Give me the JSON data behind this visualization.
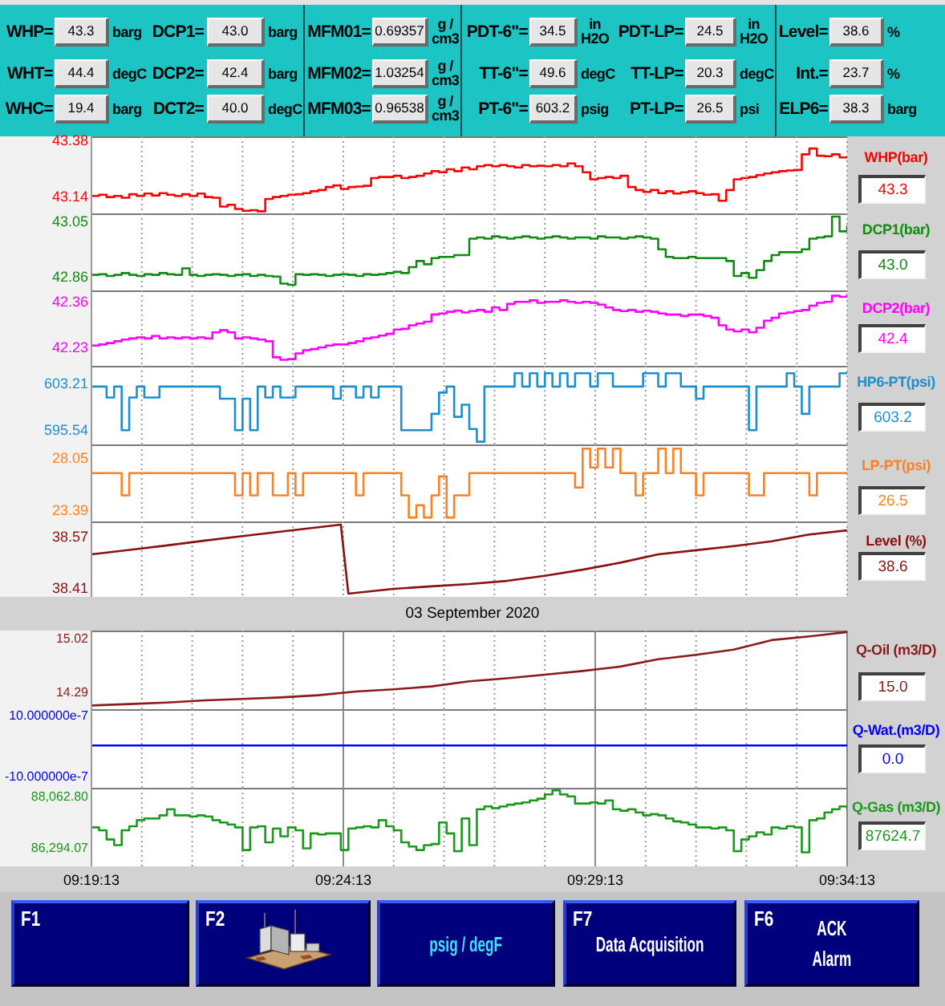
{
  "chart_data": [
    {
      "type": "other",
      "annotations": [
        "WHP=",
        "43.3",
        "barg",
        "DCP1=",
        "43.0",
        "barg",
        "MFM01=",
        "0.69357",
        "g /\ncm3",
        "PDT-6\"=",
        "34.5",
        "in\nH2O",
        "PDT-LP=",
        "24.5",
        "in\nH2O",
        "Level=",
        "38.6",
        "%",
        "WHT=",
        "44.4",
        "degC",
        "DCP2=",
        "42.4",
        "barg",
        "MFM02=",
        "1.03254",
        "g /\ncm3",
        "TT-6\"=",
        "49.6",
        "degC",
        "TT-LP=",
        "20.3",
        "degC",
        "Int.=",
        "23.7",
        "%",
        "WHC=",
        "19.4",
        "barg",
        "DCT2=",
        "40.0",
        "degC",
        "MFM03=",
        "0.96538",
        "g /\ncm3",
        "PT-6\"=",
        "603.2",
        "psig",
        "PT-LP=",
        "26.5",
        "psi",
        "ELP6=",
        "38.3",
        "barg"
      ]
    },
    {
      "type": "step",
      "x": [
        9.32028,
        9.32278,
        9.32528,
        9.32778,
        9.33028,
        9.33278,
        9.33528,
        9.33778,
        9.34028,
        9.34278,
        9.34528,
        9.34778,
        9.35028,
        9.35278,
        9.35528,
        9.35778,
        9.36028,
        9.36278,
        9.36528,
        9.36778,
        9.37028,
        9.37278,
        9.37528,
        9.37778,
        9.38028,
        9.38278,
        9.38528,
        9.38778,
        9.39028,
        9.39278,
        9.39528,
        9.39778,
        9.40028,
        9.40278,
        9.40528,
        9.40778,
        9.41028,
        9.41278,
        9.41528,
        9.41778,
        9.42028,
        9.42278,
        9.42528,
        9.42778,
        9.43028,
        9.43278,
        9.43528,
        9.43778,
        9.44028,
        9.44278,
        9.44528,
        9.44778,
        9.45028,
        9.45278,
        9.45528,
        9.45778,
        9.46028,
        9.46278,
        9.46528,
        9.46778,
        9.47028,
        9.47278,
        9.47528,
        9.47778,
        9.48028,
        9.48278,
        9.48528,
        9.48778,
        9.49028,
        9.49278,
        9.49528,
        9.49778,
        9.50028,
        9.50278,
        9.50528,
        9.50778,
        9.51028,
        9.51278,
        9.51528,
        9.51778,
        9.52028,
        9.52278,
        9.52528,
        9.52778,
        9.53028,
        9.53278,
        9.53528,
        9.53778,
        9.54028,
        9.54278,
        9.54528,
        9.54778,
        9.55028,
        9.55278,
        9.55528,
        9.55778,
        9.56028,
        9.56278,
        9.56528,
        9.56778,
        9.57028
      ],
      "series": [
        {
          "name": "WHP(bar)",
          "color": "#ff0000",
          "values": [
            43.14,
            43.145,
            43.135,
            43.14,
            43.132,
            43.147,
            43.14,
            43.15,
            43.142,
            43.152,
            43.145,
            43.14,
            43.147,
            43.14,
            43.15,
            43.135,
            43.132,
            43.094,
            43.102,
            43.084,
            43.076,
            43.079,
            43.074,
            43.127,
            43.135,
            43.14,
            43.145,
            43.147,
            43.152,
            43.16,
            43.165,
            43.178,
            43.185,
            43.17,
            43.178,
            43.18,
            43.183,
            43.216,
            43.221,
            43.221,
            43.226,
            43.216,
            43.221,
            43.226,
            43.236,
            43.246,
            43.241,
            43.254,
            43.246,
            43.262,
            43.254,
            43.267,
            43.272,
            43.267,
            43.272,
            43.267,
            43.262,
            43.272,
            43.267,
            43.269,
            43.267,
            43.272,
            43.267,
            43.279,
            43.267,
            43.241,
            43.211,
            43.216,
            43.221,
            43.216,
            43.226,
            43.178,
            43.165,
            43.157,
            43.165,
            43.152,
            43.16,
            43.15,
            43.155,
            43.16,
            43.152,
            43.145,
            43.147,
            43.119,
            43.165,
            43.211,
            43.216,
            43.221,
            43.229,
            43.236,
            43.241,
            43.246,
            43.249,
            43.251,
            43.318,
            43.343,
            43.312,
            43.31,
            43.318,
            43.305,
            43.305
          ]
        }
      ],
      "xlim": [
        9.32028,
        9.57028
      ],
      "xticks": [
        {
          "value": 9.32028,
          "label": null
        },
        {
          "value": 9.33694,
          "label": null
        },
        {
          "value": 9.35361,
          "label": null
        },
        {
          "value": 9.37028,
          "label": null
        },
        {
          "value": 9.38694,
          "label": null
        },
        {
          "value": 9.40361,
          "label": null
        },
        {
          "value": 9.42028,
          "label": null
        },
        {
          "value": 9.43694,
          "label": null
        },
        {
          "value": 9.45361,
          "label": null
        },
        {
          "value": 9.47028,
          "label": null
        },
        {
          "value": 9.48694,
          "label": null
        },
        {
          "value": 9.50361,
          "label": null
        },
        {
          "value": 9.52028,
          "label": null
        },
        {
          "value": 9.53694,
          "label": null
        },
        {
          "value": 9.55361,
          "label": null
        },
        {
          "value": 9.57028,
          "label": null
        }
      ],
      "ylim": [
        43.065,
        43.395
      ],
      "yticks": [
        43.14,
        43.38
      ],
      "grid": "x",
      "tick_labels": "y",
      "annotations": [
        "43.3"
      ]
    },
    {
      "type": "step",
      "x": [
        9.32028,
        9.32278,
        9.32528,
        9.32778,
        9.33028,
        9.33278,
        9.33528,
        9.33778,
        9.34028,
        9.34278,
        9.34528,
        9.34778,
        9.35028,
        9.35278,
        9.35528,
        9.35778,
        9.36028,
        9.36278,
        9.36528,
        9.36778,
        9.37028,
        9.37278,
        9.37528,
        9.37778,
        9.38028,
        9.38278,
        9.38528,
        9.38778,
        9.39028,
        9.39278,
        9.39528,
        9.39778,
        9.40028,
        9.40278,
        9.40528,
        9.40778,
        9.41028,
        9.41278,
        9.41528,
        9.41778,
        9.42028,
        9.42278,
        9.42528,
        9.42778,
        9.43028,
        9.43278,
        9.43528,
        9.43778,
        9.44028,
        9.44278,
        9.44528,
        9.44778,
        9.45028,
        9.45278,
        9.45528,
        9.45778,
        9.46028,
        9.46278,
        9.46528,
        9.46778,
        9.47028,
        9.47278,
        9.47528,
        9.47778,
        9.48028,
        9.48278,
        9.48528,
        9.48778,
        9.49028,
        9.49278,
        9.49528,
        9.49778,
        9.50028,
        9.50278,
        9.50528,
        9.50778,
        9.51028,
        9.51278,
        9.51528,
        9.51778,
        9.52028,
        9.52278,
        9.52528,
        9.52778,
        9.53028,
        9.53278,
        9.53528,
        9.53778,
        9.54028,
        9.54278,
        9.54528,
        9.54778,
        9.55028,
        9.55278,
        9.55528,
        9.55778,
        9.56028,
        9.56278,
        9.56528,
        9.56778,
        9.57028
      ],
      "series": [
        {
          "name": "DCP1(bar)",
          "color": "#138a13",
          "values": [
            42.866,
            42.868,
            42.862,
            42.866,
            42.872,
            42.866,
            42.862,
            42.868,
            42.866,
            42.872,
            42.868,
            42.866,
            42.888,
            42.866,
            42.862,
            42.866,
            42.868,
            42.866,
            42.862,
            42.866,
            42.868,
            42.862,
            42.866,
            42.862,
            42.86,
            42.836,
            42.832,
            42.868,
            42.866,
            42.868,
            42.866,
            42.862,
            42.866,
            42.868,
            42.866,
            42.862,
            42.868,
            42.866,
            42.868,
            42.872,
            42.876,
            42.872,
            42.892,
            42.913,
            42.902,
            42.923,
            42.927,
            42.927,
            42.933,
            42.933,
            42.989,
            42.993,
            42.989,
            42.997,
            42.993,
            42.989,
            42.993,
            42.997,
            42.993,
            42.989,
            42.993,
            42.997,
            42.993,
            42.989,
            42.993,
            42.993,
            42.989,
            42.997,
            42.993,
            42.993,
            42.989,
            42.993,
            42.997,
            42.993,
            42.989,
            42.953,
            42.927,
            42.923,
            42.923,
            42.927,
            42.923,
            42.923,
            42.923,
            42.923,
            42.913,
            42.862,
            42.872,
            42.856,
            42.882,
            42.913,
            42.933,
            42.943,
            42.943,
            42.943,
            42.953,
            42.989,
            42.993,
            42.997,
            43.064,
            43.014,
            43.034
          ]
        }
      ],
      "xlim": [
        9.32028,
        9.57028
      ],
      "xticks": [
        {
          "value": 9.32028,
          "label": null
        },
        {
          "value": 9.33694,
          "label": null
        },
        {
          "value": 9.35361,
          "label": null
        },
        {
          "value": 9.37028,
          "label": null
        },
        {
          "value": 9.38694,
          "label": null
        },
        {
          "value": 9.40361,
          "label": null
        },
        {
          "value": 9.42028,
          "label": null
        },
        {
          "value": 9.43694,
          "label": null
        },
        {
          "value": 9.45361,
          "label": null
        },
        {
          "value": 9.47028,
          "label": null
        },
        {
          "value": 9.48694,
          "label": null
        },
        {
          "value": 9.50361,
          "label": null
        },
        {
          "value": 9.52028,
          "label": null
        },
        {
          "value": 9.53694,
          "label": null
        },
        {
          "value": 9.55361,
          "label": null
        },
        {
          "value": 9.57028,
          "label": null
        }
      ],
      "ylim": [
        42.813,
        43.075
      ],
      "yticks": [
        42.86,
        43.05
      ],
      "grid": "x",
      "tick_labels": "y",
      "annotations": [
        "43.0"
      ]
    },
    {
      "type": "step",
      "x": [
        9.32028,
        9.32278,
        9.32528,
        9.32778,
        9.33028,
        9.33278,
        9.33528,
        9.33778,
        9.34028,
        9.34278,
        9.34528,
        9.34778,
        9.35028,
        9.35278,
        9.35528,
        9.35778,
        9.36028,
        9.36278,
        9.36528,
        9.36778,
        9.37028,
        9.37278,
        9.37528,
        9.37778,
        9.38028,
        9.38278,
        9.38528,
        9.38778,
        9.39028,
        9.39278,
        9.39528,
        9.39778,
        9.40028,
        9.40278,
        9.40528,
        9.40778,
        9.41028,
        9.41278,
        9.41528,
        9.41778,
        9.42028,
        9.42278,
        9.42528,
        9.42778,
        9.43028,
        9.43278,
        9.43528,
        9.43778,
        9.44028,
        9.44278,
        9.44528,
        9.44778,
        9.45028,
        9.45278,
        9.45528,
        9.45778,
        9.46028,
        9.46278,
        9.46528,
        9.46778,
        9.47028,
        9.47278,
        9.47528,
        9.47778,
        9.48028,
        9.48278,
        9.48528,
        9.48778,
        9.49028,
        9.49278,
        9.49528,
        9.49778,
        9.50028,
        9.50278,
        9.50528,
        9.50778,
        9.51028,
        9.51278,
        9.51528,
        9.51778,
        9.52028,
        9.52278,
        9.52528,
        9.52778,
        9.53028,
        9.53278,
        9.53528,
        9.53778,
        9.54028,
        9.54278,
        9.54528,
        9.54778,
        9.55028,
        9.55278,
        9.55528,
        9.55778,
        9.56028,
        9.56278,
        9.56528,
        9.56778,
        9.57028
      ],
      "series": [
        {
          "name": "DCP2(bar)",
          "color": "#ff00ff",
          "values": [
            42.235,
            42.238,
            42.242,
            42.247,
            42.252,
            42.255,
            42.258,
            42.255,
            42.262,
            42.255,
            42.258,
            42.255,
            42.258,
            42.255,
            42.258,
            42.255,
            42.272,
            42.278,
            42.272,
            42.255,
            42.258,
            42.255,
            42.252,
            42.247,
            42.202,
            42.195,
            42.197,
            42.213,
            42.222,
            42.225,
            42.23,
            42.235,
            42.238,
            42.238,
            42.242,
            42.247,
            42.255,
            42.258,
            42.263,
            42.268,
            42.28,
            42.282,
            42.292,
            42.297,
            42.302,
            42.322,
            42.325,
            42.33,
            42.333,
            42.328,
            42.332,
            42.335,
            42.33,
            42.342,
            42.335,
            42.352,
            42.358,
            42.358,
            42.362,
            42.355,
            42.358,
            42.358,
            42.362,
            42.358,
            42.355,
            42.358,
            42.355,
            42.35,
            42.342,
            42.335,
            42.332,
            42.335,
            42.33,
            42.333,
            42.33,
            42.325,
            42.322,
            42.322,
            42.318,
            42.322,
            42.322,
            42.318,
            42.313,
            42.292,
            42.28,
            42.275,
            42.28,
            42.272,
            42.285,
            42.305,
            42.313,
            42.325,
            42.328,
            42.332,
            42.335,
            42.347,
            42.355,
            42.358,
            42.375,
            42.372,
            42.38
          ]
        }
      ],
      "xlim": [
        9.32028,
        9.57028
      ],
      "xticks": [
        {
          "value": 9.32028,
          "label": null
        },
        {
          "value": 9.33694,
          "label": null
        },
        {
          "value": 9.35361,
          "label": null
        },
        {
          "value": 9.37028,
          "label": null
        },
        {
          "value": 9.38694,
          "label": null
        },
        {
          "value": 9.40361,
          "label": null
        },
        {
          "value": 9.42028,
          "label": null
        },
        {
          "value": 9.43694,
          "label": null
        },
        {
          "value": 9.45361,
          "label": null
        },
        {
          "value": 9.47028,
          "label": null
        },
        {
          "value": 9.48694,
          "label": null
        },
        {
          "value": 9.50361,
          "label": null
        },
        {
          "value": 9.52028,
          "label": null
        },
        {
          "value": 9.53694,
          "label": null
        },
        {
          "value": 9.55361,
          "label": null
        },
        {
          "value": 9.57028,
          "label": null
        }
      ],
      "ylim": [
        42.178,
        42.39
      ],
      "yticks": [
        42.23,
        42.36
      ],
      "grid": "x",
      "tick_labels": "y",
      "annotations": [
        "42.4"
      ]
    },
    {
      "type": "step",
      "x": [
        9.32028,
        9.32278,
        9.32528,
        9.32778,
        9.33028,
        9.33278,
        9.33528,
        9.33778,
        9.34028,
        9.34278,
        9.34528,
        9.34778,
        9.35028,
        9.35278,
        9.35528,
        9.35778,
        9.36028,
        9.36278,
        9.36528,
        9.36778,
        9.37028,
        9.37278,
        9.37528,
        9.37778,
        9.38028,
        9.38278,
        9.38528,
        9.38778,
        9.39028,
        9.39278,
        9.39528,
        9.39778,
        9.40028,
        9.40278,
        9.40528,
        9.40778,
        9.41028,
        9.41278,
        9.41528,
        9.41778,
        9.42028,
        9.42278,
        9.42528,
        9.42778,
        9.43028,
        9.43278,
        9.43528,
        9.43778,
        9.44028,
        9.44278,
        9.44528,
        9.44778,
        9.45028,
        9.45278,
        9.45528,
        9.45778,
        9.46028,
        9.46278,
        9.46528,
        9.46778,
        9.47028,
        9.47278,
        9.47528,
        9.47778,
        9.48028,
        9.48278,
        9.48528,
        9.48778,
        9.49028,
        9.49278,
        9.49528,
        9.49778,
        9.50028,
        9.50278,
        9.50528,
        9.50778,
        9.51028,
        9.51278,
        9.51528,
        9.51778,
        9.52028,
        9.52278,
        9.52528,
        9.52778,
        9.53028,
        9.53278,
        9.53528,
        9.53778,
        9.54028,
        9.54278,
        9.54528,
        9.54778,
        9.55028,
        9.55278,
        9.55528,
        9.55778,
        9.56028,
        9.56278,
        9.56528,
        9.56778,
        9.57028
      ],
      "series": [
        {
          "name": "HP6-PT(psi)",
          "color": "#1b8fd0",
          "values": [
            602.7,
            602.7,
            600.9,
            602.7,
            595.5,
            600.9,
            602.7,
            600.9,
            600.9,
            602.7,
            602.7,
            602.7,
            602.7,
            602.7,
            602.7,
            602.7,
            602.7,
            600.7,
            600.7,
            595.5,
            600.7,
            595.5,
            602.7,
            600.9,
            602.7,
            600.9,
            600.9,
            602.7,
            602.7,
            602.7,
            602.7,
            602.7,
            600.7,
            602.7,
            602.7,
            600.9,
            602.7,
            600.9,
            602.7,
            602.7,
            602.7,
            595.5,
            595.5,
            595.5,
            595.5,
            598.2,
            601.7,
            602.7,
            597.7,
            599.7,
            595.7,
            593.6,
            602.7,
            602.7,
            602.7,
            602.7,
            604.9,
            602.7,
            604.9,
            602.7,
            604.9,
            602.7,
            604.9,
            602.7,
            604.9,
            604.9,
            602.7,
            604.9,
            604.9,
            602.7,
            602.7,
            602.7,
            602.7,
            604.9,
            604.9,
            602.7,
            604.9,
            604.9,
            602.7,
            602.7,
            600.7,
            602.7,
            602.7,
            602.7,
            602.7,
            602.7,
            602.7,
            595.5,
            602.7,
            602.7,
            602.7,
            602.7,
            604.9,
            602.7,
            598.2,
            602.7,
            602.7,
            602.7,
            602.7,
            604.9,
            604.9
          ]
        }
      ],
      "xlim": [
        9.32028,
        9.57028
      ],
      "xticks": [
        {
          "value": 9.32028,
          "label": null
        },
        {
          "value": 9.33694,
          "label": null
        },
        {
          "value": 9.35361,
          "label": null
        },
        {
          "value": 9.37028,
          "label": null
        },
        {
          "value": 9.38694,
          "label": null
        },
        {
          "value": 9.40361,
          "label": null
        },
        {
          "value": 9.42028,
          "label": null
        },
        {
          "value": 9.43694,
          "label": null
        },
        {
          "value": 9.45361,
          "label": null
        },
        {
          "value": 9.47028,
          "label": null
        },
        {
          "value": 9.48694,
          "label": null
        },
        {
          "value": 9.50361,
          "label": null
        },
        {
          "value": 9.52028,
          "label": null
        },
        {
          "value": 9.53694,
          "label": null
        },
        {
          "value": 9.55361,
          "label": null
        },
        {
          "value": 9.57028,
          "label": null
        }
      ],
      "ylim": [
        593.16,
        606.12
      ],
      "yticks": [
        595.54,
        603.21
      ],
      "grid": "x",
      "tick_labels": "y",
      "annotations": [
        "603.2"
      ]
    },
    {
      "type": "step",
      "x": [
        9.32028,
        9.32278,
        9.32528,
        9.32778,
        9.33028,
        9.33278,
        9.33528,
        9.33778,
        9.34028,
        9.34278,
        9.34528,
        9.34778,
        9.35028,
        9.35278,
        9.35528,
        9.35778,
        9.36028,
        9.36278,
        9.36528,
        9.36778,
        9.37028,
        9.37278,
        9.37528,
        9.37778,
        9.38028,
        9.38278,
        9.38528,
        9.38778,
        9.39028,
        9.39278,
        9.39528,
        9.39778,
        9.40028,
        9.40278,
        9.40528,
        9.40778,
        9.41028,
        9.41278,
        9.41528,
        9.41778,
        9.42028,
        9.42278,
        9.42528,
        9.42778,
        9.43028,
        9.43278,
        9.43528,
        9.43778,
        9.44028,
        9.44278,
        9.44528,
        9.44778,
        9.45028,
        9.45278,
        9.45528,
        9.45778,
        9.46028,
        9.46278,
        9.46528,
        9.46778,
        9.47028,
        9.47278,
        9.47528,
        9.47778,
        9.48028,
        9.48278,
        9.48528,
        9.48778,
        9.49028,
        9.49278,
        9.49528,
        9.49778,
        9.50028,
        9.50278,
        9.50528,
        9.50778,
        9.51028,
        9.51278,
        9.51528,
        9.51778,
        9.52028,
        9.52278,
        9.52528,
        9.52778,
        9.53028,
        9.53278,
        9.53528,
        9.53778,
        9.54028,
        9.54278,
        9.54528,
        9.54778,
        9.55028,
        9.55278,
        9.55528,
        9.55778,
        9.56028,
        9.56278,
        9.56528,
        9.56778,
        9.57028
      ],
      "series": [
        {
          "name": "LP-PT(psi)",
          "color": "#ff8020",
          "values": [
            26.7,
            26.7,
            26.7,
            26.7,
            24.7,
            26.7,
            26.7,
            26.7,
            26.7,
            26.7,
            26.7,
            26.7,
            26.7,
            26.7,
            26.7,
            26.7,
            26.7,
            26.7,
            26.7,
            24.7,
            26.7,
            24.7,
            26.7,
            26.7,
            24.7,
            24.7,
            26.7,
            24.7,
            26.7,
            26.7,
            26.7,
            26.7,
            26.7,
            26.7,
            26.7,
            24.7,
            26.7,
            26.7,
            26.7,
            26.7,
            26.7,
            24.7,
            22.7,
            23.8,
            22.7,
            24.7,
            26.4,
            22.7,
            24.7,
            24.7,
            26.7,
            26.7,
            26.7,
            26.7,
            26.7,
            26.7,
            26.7,
            26.7,
            26.7,
            26.7,
            26.7,
            26.7,
            26.7,
            26.7,
            25.4,
            28.9,
            27.2,
            28.9,
            27.2,
            28.9,
            26.7,
            26.7,
            24.7,
            26.7,
            26.7,
            28.9,
            26.7,
            28.9,
            26.7,
            26.7,
            24.7,
            26.7,
            26.7,
            26.7,
            26.7,
            26.7,
            26.7,
            24.7,
            24.7,
            26.7,
            26.7,
            26.7,
            26.7,
            26.7,
            26.7,
            24.7,
            26.7,
            26.7,
            26.7,
            26.7,
            26.7
          ]
        }
      ],
      "xlim": [
        9.32028,
        9.57028
      ],
      "xticks": [
        {
          "value": 9.32028,
          "label": null
        },
        {
          "value": 9.33694,
          "label": null
        },
        {
          "value": 9.35361,
          "label": null
        },
        {
          "value": 9.37028,
          "label": null
        },
        {
          "value": 9.38694,
          "label": null
        },
        {
          "value": 9.40361,
          "label": null
        },
        {
          "value": 9.42028,
          "label": null
        },
        {
          "value": 9.43694,
          "label": null
        },
        {
          "value": 9.45361,
          "label": null
        },
        {
          "value": 9.47028,
          "label": null
        },
        {
          "value": 9.48694,
          "label": null
        },
        {
          "value": 9.50361,
          "label": null
        },
        {
          "value": 9.52028,
          "label": null
        },
        {
          "value": 9.53694,
          "label": null
        },
        {
          "value": 9.55361,
          "label": null
        },
        {
          "value": 9.57028,
          "label": null
        }
      ],
      "ylim": [
        22.35,
        29.28
      ],
      "yticks": [
        23.39,
        28.05
      ],
      "grid": "x",
      "tick_labels": "y",
      "annotations": [
        "26.5"
      ]
    },
    {
      "type": "line",
      "x": [
        9.32028,
        9.33278,
        9.34528,
        9.35778,
        9.37028,
        9.38278,
        9.39528,
        9.40278,
        9.40528,
        9.41028,
        9.42028,
        9.43278,
        9.44528,
        9.45778,
        9.47028,
        9.48278,
        9.49528,
        9.50778,
        9.52028,
        9.53278,
        9.54528,
        9.55778,
        9.57028
      ],
      "series": [
        {
          "name": "Level (%)",
          "color": "#8b1010",
          "values": [
            38.514,
            38.528,
            38.542,
            38.557,
            38.571,
            38.585,
            38.599,
            38.607,
            38.391,
            38.396,
            38.406,
            38.414,
            38.421,
            38.431,
            38.447,
            38.466,
            38.488,
            38.514,
            38.527,
            38.54,
            38.555,
            38.576,
            38.589
          ]
        }
      ],
      "xlim": [
        9.32028,
        9.57028
      ],
      "xticks": [
        {
          "value": 9.32028,
          "label": null
        },
        {
          "value": 9.33694,
          "label": null
        },
        {
          "value": 9.35361,
          "label": null
        },
        {
          "value": 9.37028,
          "label": null
        },
        {
          "value": 9.38694,
          "label": null
        },
        {
          "value": 9.40361,
          "label": null
        },
        {
          "value": 9.42028,
          "label": null
        },
        {
          "value": 9.43694,
          "label": null
        },
        {
          "value": 9.45361,
          "label": null
        },
        {
          "value": 9.47028,
          "label": null
        },
        {
          "value": 9.48694,
          "label": null
        },
        {
          "value": 9.50361,
          "label": null
        },
        {
          "value": 9.52028,
          "label": null
        },
        {
          "value": 9.53694,
          "label": null
        },
        {
          "value": 9.55361,
          "label": null
        },
        {
          "value": 9.57028,
          "label": null
        }
      ],
      "ylim": [
        38.381,
        38.617
      ],
      "yticks": [
        38.41,
        38.57
      ],
      "grid": "x",
      "tick_labels": "y",
      "xlabel": "03 September 2020",
      "annotations": [
        "38.6"
      ]
    },
    {
      "type": "line",
      "x": [
        9.32028,
        9.33278,
        9.34528,
        9.35778,
        9.37028,
        9.38278,
        9.39528,
        9.40778,
        9.42028,
        9.43278,
        9.44528,
        9.45778,
        9.47028,
        9.48278,
        9.49528,
        9.50778,
        9.52028,
        9.53278,
        9.54528,
        9.55778,
        9.57028
      ],
      "series": [
        {
          "name": "Q-Oil (m3/D)",
          "color": "#8b1a1a",
          "values": [
            14.1,
            14.12,
            14.14,
            14.17,
            14.19,
            14.21,
            14.24,
            14.29,
            14.32,
            14.36,
            14.43,
            14.47,
            14.52,
            14.57,
            14.63,
            14.73,
            14.79,
            14.86,
            14.99,
            15.04,
            15.1
          ]
        }
      ],
      "xlim": [
        9.32028,
        9.57028
      ],
      "ylim": [
        14.05,
        15.12
      ],
      "yticks": [
        14.29,
        15.02
      ],
      "grid": "x",
      "tick_labels": "y",
      "annotations": [
        "15.0"
      ]
    },
    {
      "type": "line",
      "x": [
        9.32028,
        9.57028
      ],
      "series": [
        {
          "name": "Q-Wat.(m3/D)",
          "color": "#0000ff",
          "values": [
            0,
            0
          ]
        }
      ],
      "xlim": [
        9.32028,
        9.57028
      ],
      "ylim": [
        -1.4e-06,
        1.2e-06
      ],
      "yticks": [
        {
          "value": -1e-06,
          "label": "-10.000000e-7"
        },
        {
          "value": 1e-06,
          "label": "10.000000e-7"
        }
      ],
      "grid": "x",
      "tick_labels": "y",
      "annotations": [
        "0.0"
      ]
    },
    {
      "type": "step",
      "x": [
        9.32028,
        9.32278,
        9.32528,
        9.32778,
        9.33028,
        9.33278,
        9.33528,
        9.33778,
        9.34028,
        9.34278,
        9.34528,
        9.34778,
        9.35028,
        9.35278,
        9.35528,
        9.35778,
        9.36028,
        9.36278,
        9.36528,
        9.36778,
        9.37028,
        9.37278,
        9.37528,
        9.37778,
        9.38028,
        9.38278,
        9.38528,
        9.38778,
        9.39028,
        9.39278,
        9.39528,
        9.39778,
        9.40028,
        9.40278,
        9.40528,
        9.40778,
        9.41028,
        9.41278,
        9.41528,
        9.41778,
        9.42028,
        9.42278,
        9.42528,
        9.42778,
        9.43028,
        9.43278,
        9.43528,
        9.43778,
        9.44028,
        9.44278,
        9.44528,
        9.44778,
        9.45028,
        9.45278,
        9.45528,
        9.45778,
        9.46028,
        9.46278,
        9.46528,
        9.46778,
        9.47028,
        9.47278,
        9.47528,
        9.47778,
        9.48028,
        9.48278,
        9.48528,
        9.48778,
        9.49028,
        9.49278,
        9.49528,
        9.49778,
        9.50028,
        9.50278,
        9.50528,
        9.50778,
        9.51028,
        9.51278,
        9.51528,
        9.51778,
        9.52028,
        9.52278,
        9.52528,
        9.52778,
        9.53028,
        9.53278,
        9.53528,
        9.53778,
        9.54028,
        9.54278,
        9.54528,
        9.54778,
        9.55028,
        9.55278,
        9.55528,
        9.55778,
        9.56028,
        9.56278,
        9.56528,
        9.56778,
        9.57028
      ],
      "series": [
        {
          "name": "Q-Gas (m3/D)",
          "color": "#1a9a1a",
          "values": [
            86980,
            86880,
            86560,
            86360,
            86880,
            87020,
            87230,
            87290,
            87290,
            87400,
            87610,
            87400,
            87400,
            87360,
            87400,
            87360,
            87230,
            87150,
            87080,
            86980,
            86190,
            86980,
            87020,
            86460,
            86940,
            86670,
            86980,
            86880,
            86250,
            86770,
            86730,
            86770,
            86770,
            86190,
            86940,
            86980,
            87020,
            86980,
            87230,
            87020,
            86880,
            86460,
            86310,
            86190,
            86360,
            86400,
            87150,
            86770,
            86150,
            87290,
            86360,
            87610,
            87710,
            87650,
            87710,
            87770,
            87810,
            87850,
            87920,
            87980,
            88130,
            88270,
            88130,
            88060,
            87810,
            87810,
            87850,
            87810,
            87920,
            87610,
            87560,
            87610,
            87500,
            87400,
            87440,
            87400,
            87290,
            87190,
            87150,
            87080,
            86980,
            86980,
            86940,
            86980,
            86880,
            86150,
            86560,
            86670,
            86810,
            86730,
            86980,
            86940,
            87020,
            86980,
            86110,
            87230,
            87290,
            87500,
            87610,
            87710,
            87610
          ]
        }
      ],
      "xlim": [
        9.32028,
        9.57028
      ],
      "xticks": [
        {
          "value": 9.32028,
          "label": "09:19:13"
        },
        {
          "value": 9.33694,
          "label": null
        },
        {
          "value": 9.35361,
          "label": null
        },
        {
          "value": 9.37028,
          "label": null
        },
        {
          "value": 9.38694,
          "label": null
        },
        {
          "value": 9.40361,
          "label": "09:24:13"
        },
        {
          "value": 9.42028,
          "label": null
        },
        {
          "value": 9.43694,
          "label": null
        },
        {
          "value": 9.45361,
          "label": null
        },
        {
          "value": 9.47028,
          "label": null
        },
        {
          "value": 9.48694,
          "label": "09:29:13"
        },
        {
          "value": 9.50361,
          "label": null
        },
        {
          "value": 9.52028,
          "label": null
        },
        {
          "value": 9.53694,
          "label": null
        },
        {
          "value": 9.55361,
          "label": null
        },
        {
          "value": 9.57028,
          "label": "09:34:13"
        }
      ],
      "ylim": [
        85620,
        88360
      ],
      "yticks": [
        {
          "value": 86294.07,
          "label": "86,294.07"
        },
        {
          "value": 88062.8,
          "label": "88,062.80"
        }
      ],
      "grid": "x",
      "annotations": [
        "87624.7"
      ]
    },
    {
      "type": "other",
      "annotations": [
        "F1",
        "F2",
        "psig / degF",
        "F7",
        "Data Acquisition",
        "F6",
        "ACK\nAlarm"
      ]
    }
  ]
}
